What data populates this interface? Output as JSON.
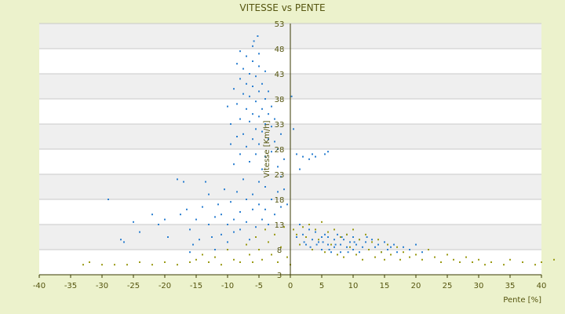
{
  "chart_data": {
    "type": "scatter",
    "title": "VITESSE vs PENTE",
    "xlabel": "Pente [%]",
    "ylabel": "Vitesse [Km/h]",
    "xlim": [
      -40,
      40
    ],
    "ylim": [
      3,
      53
    ],
    "x_ticks": [
      "-40",
      "-35",
      "-30",
      "-25",
      "-20",
      "-15",
      "-10",
      "-5",
      "0",
      "5",
      "10",
      "15",
      "20",
      "25",
      "30",
      "35",
      "40"
    ],
    "y_ticks": [
      "3",
      "8",
      "13",
      "18",
      "23",
      "28",
      "33",
      "38",
      "43",
      "48",
      "53"
    ],
    "grid": "horizontal bands",
    "legend": "none",
    "series": [
      {
        "color": "#2b7fd0",
        "points": [
          [
            -29,
            18
          ],
          [
            -27,
            10
          ],
          [
            -26.5,
            9.5
          ],
          [
            -25,
            13.5
          ],
          [
            -24,
            11.5
          ],
          [
            -22,
            15
          ],
          [
            -21,
            13
          ],
          [
            -20,
            14
          ],
          [
            -19.5,
            10.5
          ],
          [
            -18,
            22
          ],
          [
            -17.5,
            15
          ],
          [
            -17,
            21.5
          ],
          [
            -16.5,
            16
          ],
          [
            -16,
            12
          ],
          [
            -16,
            7.5
          ],
          [
            -15.5,
            9
          ],
          [
            -15,
            14
          ],
          [
            -14.5,
            10
          ],
          [
            -14,
            16.5
          ],
          [
            -13.5,
            21.5
          ],
          [
            -13,
            13
          ],
          [
            -13,
            19
          ],
          [
            -12.5,
            10.5
          ],
          [
            -12,
            14.5
          ],
          [
            -12,
            8
          ],
          [
            -11.5,
            17
          ],
          [
            -11,
            15
          ],
          [
            -11,
            11
          ],
          [
            -10.5,
            20
          ],
          [
            -10,
            13
          ],
          [
            -10,
            9.5
          ],
          [
            -9.5,
            17.5
          ],
          [
            -9,
            14
          ],
          [
            -9,
            11.5
          ],
          [
            -8.5,
            19.5
          ],
          [
            -8,
            15.5
          ],
          [
            -8,
            12
          ],
          [
            -7.5,
            22
          ],
          [
            -7,
            18
          ],
          [
            -7,
            13.5
          ],
          [
            -6.5,
            10
          ],
          [
            -6,
            16
          ],
          [
            -6,
            19
          ],
          [
            -5.5,
            12.5
          ],
          [
            -5,
            17
          ],
          [
            -5,
            21.5
          ],
          [
            -4.5,
            14
          ],
          [
            -4,
            20.5
          ],
          [
            -4,
            16
          ],
          [
            -3.5,
            13
          ],
          [
            -3,
            18
          ],
          [
            -2.5,
            15
          ],
          [
            -2,
            19.5
          ],
          [
            -1.5,
            16.5
          ],
          [
            -1,
            20
          ],
          [
            -0.5,
            17
          ],
          [
            -10,
            36.5
          ],
          [
            -9.5,
            33
          ],
          [
            -9.5,
            29
          ],
          [
            -9,
            40
          ],
          [
            -9,
            25
          ],
          [
            -8.5,
            37
          ],
          [
            -8.5,
            30.5
          ],
          [
            -8.5,
            45
          ],
          [
            -8,
            42
          ],
          [
            -8,
            34
          ],
          [
            -8,
            27
          ],
          [
            -8,
            47.5
          ],
          [
            -7.5,
            39
          ],
          [
            -7.5,
            31
          ],
          [
            -7.5,
            44
          ],
          [
            -7,
            36
          ],
          [
            -7,
            28.5
          ],
          [
            -7,
            41
          ],
          [
            -7,
            46.5
          ],
          [
            -6.5,
            33.5
          ],
          [
            -6.5,
            38.5
          ],
          [
            -6.5,
            43
          ],
          [
            -6.5,
            25.5
          ],
          [
            -6,
            35
          ],
          [
            -6,
            40.5
          ],
          [
            -6,
            45.5
          ],
          [
            -6,
            48.5
          ],
          [
            -6,
            30
          ],
          [
            -5.8,
            49.5
          ],
          [
            -5.5,
            32
          ],
          [
            -5.5,
            37.5
          ],
          [
            -5.5,
            42.5
          ],
          [
            -5.5,
            27
          ],
          [
            -5.2,
            50.5
          ],
          [
            -5,
            34.5
          ],
          [
            -5,
            39.5
          ],
          [
            -5,
            44.5
          ],
          [
            -5,
            47
          ],
          [
            -5,
            29
          ],
          [
            -4.5,
            36
          ],
          [
            -4.5,
            41
          ],
          [
            -4.5,
            31.5
          ],
          [
            -4.5,
            24
          ],
          [
            -4,
            38
          ],
          [
            -4,
            33
          ],
          [
            -4,
            43.5
          ],
          [
            -4,
            26.5
          ],
          [
            -3.5,
            35
          ],
          [
            -3.5,
            30
          ],
          [
            -3.5,
            39.5
          ],
          [
            -3,
            32.5
          ],
          [
            -3,
            27.5
          ],
          [
            -3,
            36.5
          ],
          [
            -2.5,
            29.5
          ],
          [
            -2.5,
            34
          ],
          [
            -2,
            28
          ],
          [
            -2,
            24.5
          ],
          [
            -1.5,
            31
          ],
          [
            -1.5,
            22.5
          ],
          [
            -1,
            26
          ],
          [
            0.2,
            38.5
          ],
          [
            0.5,
            32
          ],
          [
            1,
            27
          ],
          [
            1.5,
            24
          ],
          [
            2,
            26.5
          ],
          [
            3,
            26
          ],
          [
            3.5,
            27
          ],
          [
            4,
            26.5
          ],
          [
            5.5,
            27
          ],
          [
            6,
            27.5
          ],
          [
            1.5,
            13
          ],
          [
            1,
            10.5
          ],
          [
            2,
            11
          ],
          [
            2.5,
            9
          ],
          [
            3,
            12
          ],
          [
            3.5,
            10
          ],
          [
            4,
            11.5
          ],
          [
            4.5,
            9.5
          ],
          [
            5,
            10.5
          ],
          [
            5,
            8
          ],
          [
            5.5,
            11
          ],
          [
            6,
            9
          ],
          [
            6,
            10.5
          ],
          [
            6.5,
            7.5
          ],
          [
            7,
            10
          ],
          [
            7,
            8.5
          ],
          [
            7.5,
            11
          ],
          [
            8,
            9
          ],
          [
            8,
            7.5
          ],
          [
            8.5,
            10
          ],
          [
            9,
            8.5
          ],
          [
            9,
            11
          ],
          [
            9.5,
            9.5
          ],
          [
            10,
            8
          ],
          [
            10,
            10.5
          ],
          [
            10.5,
            9
          ],
          [
            11,
            7.5
          ],
          [
            11,
            10
          ],
          [
            11.5,
            8.5
          ],
          [
            12,
            9.5
          ],
          [
            12.5,
            8
          ],
          [
            13,
            10
          ],
          [
            13.5,
            8.5
          ],
          [
            14,
            9
          ],
          [
            14.5,
            7.5
          ],
          [
            15,
            9.5
          ],
          [
            15.5,
            8
          ],
          [
            16,
            8.5
          ],
          [
            16.5,
            9
          ],
          [
            17,
            7.5
          ],
          [
            18,
            8.5
          ],
          [
            19,
            8
          ],
          [
            20,
            9
          ],
          [
            21,
            7.5
          ],
          [
            2.2,
            9.5
          ],
          [
            3.2,
            8.5
          ],
          [
            4.2,
            9
          ],
          [
            5.2,
            9.5
          ],
          [
            6.2,
            8
          ],
          [
            7.2,
            9
          ],
          [
            8.2,
            10.5
          ],
          [
            9.2,
            7.5
          ],
          [
            10.2,
            9.5
          ],
          [
            12.2,
            10.5
          ]
        ]
      },
      {
        "color": "#9a9a14",
        "points": [
          [
            -33,
            5
          ],
          [
            -32,
            5.5
          ],
          [
            -30,
            5
          ],
          [
            -28,
            5
          ],
          [
            -26,
            5
          ],
          [
            -24,
            5.5
          ],
          [
            -22,
            5
          ],
          [
            -20,
            5.5
          ],
          [
            -18,
            5
          ],
          [
            -16,
            5.5
          ],
          [
            -15,
            6
          ],
          [
            -14,
            7
          ],
          [
            -13,
            5.5
          ],
          [
            -12,
            6.5
          ],
          [
            -11,
            5
          ],
          [
            -10,
            8
          ],
          [
            -9,
            6
          ],
          [
            -8,
            5.5
          ],
          [
            -7,
            9
          ],
          [
            -6.5,
            7
          ],
          [
            -6,
            5.5
          ],
          [
            -5.5,
            10.5
          ],
          [
            -5,
            8
          ],
          [
            -4.5,
            6
          ],
          [
            -4,
            12
          ],
          [
            -3.5,
            9.5
          ],
          [
            -3,
            7
          ],
          [
            -2.5,
            11
          ],
          [
            -2,
            5.5
          ],
          [
            -1.5,
            8.5
          ],
          [
            -1,
            12.5
          ],
          [
            -0.5,
            6.5
          ],
          [
            0,
            5
          ],
          [
            0.5,
            12
          ],
          [
            1,
            11
          ],
          [
            1.5,
            9
          ],
          [
            2,
            12.5
          ],
          [
            2.5,
            10.5
          ],
          [
            3,
            13
          ],
          [
            3.5,
            8
          ],
          [
            4,
            12
          ],
          [
            4.5,
            10
          ],
          [
            5,
            13.5
          ],
          [
            5.5,
            7.5
          ],
          [
            6,
            11.5
          ],
          [
            6.5,
            9
          ],
          [
            7,
            12
          ],
          [
            7.5,
            7
          ],
          [
            8,
            10.5
          ],
          [
            8.5,
            6.5
          ],
          [
            9,
            11
          ],
          [
            9.5,
            8.5
          ],
          [
            10,
            12
          ],
          [
            10.5,
            7
          ],
          [
            11,
            10
          ],
          [
            11.5,
            6
          ],
          [
            12,
            11
          ],
          [
            12.5,
            8
          ],
          [
            13,
            9.5
          ],
          [
            13.5,
            6.5
          ],
          [
            14,
            10
          ],
          [
            14.5,
            7.5
          ],
          [
            15,
            6
          ],
          [
            15.5,
            9
          ],
          [
            16,
            7
          ],
          [
            17,
            8.5
          ],
          [
            17.5,
            6
          ],
          [
            18,
            7.5
          ],
          [
            19,
            6.5
          ],
          [
            20,
            7
          ],
          [
            21,
            6
          ],
          [
            22,
            8
          ],
          [
            23,
            6.5
          ],
          [
            24,
            5.5
          ],
          [
            25,
            7
          ],
          [
            26,
            6
          ],
          [
            27,
            5.5
          ],
          [
            28,
            6.5
          ],
          [
            29,
            5.5
          ],
          [
            30,
            6
          ],
          [
            31,
            5
          ],
          [
            32,
            5.5
          ],
          [
            34,
            5
          ],
          [
            35,
            6
          ],
          [
            37,
            5.5
          ],
          [
            39,
            5
          ],
          [
            40,
            5.5
          ],
          [
            42,
            6
          ]
        ]
      }
    ]
  }
}
